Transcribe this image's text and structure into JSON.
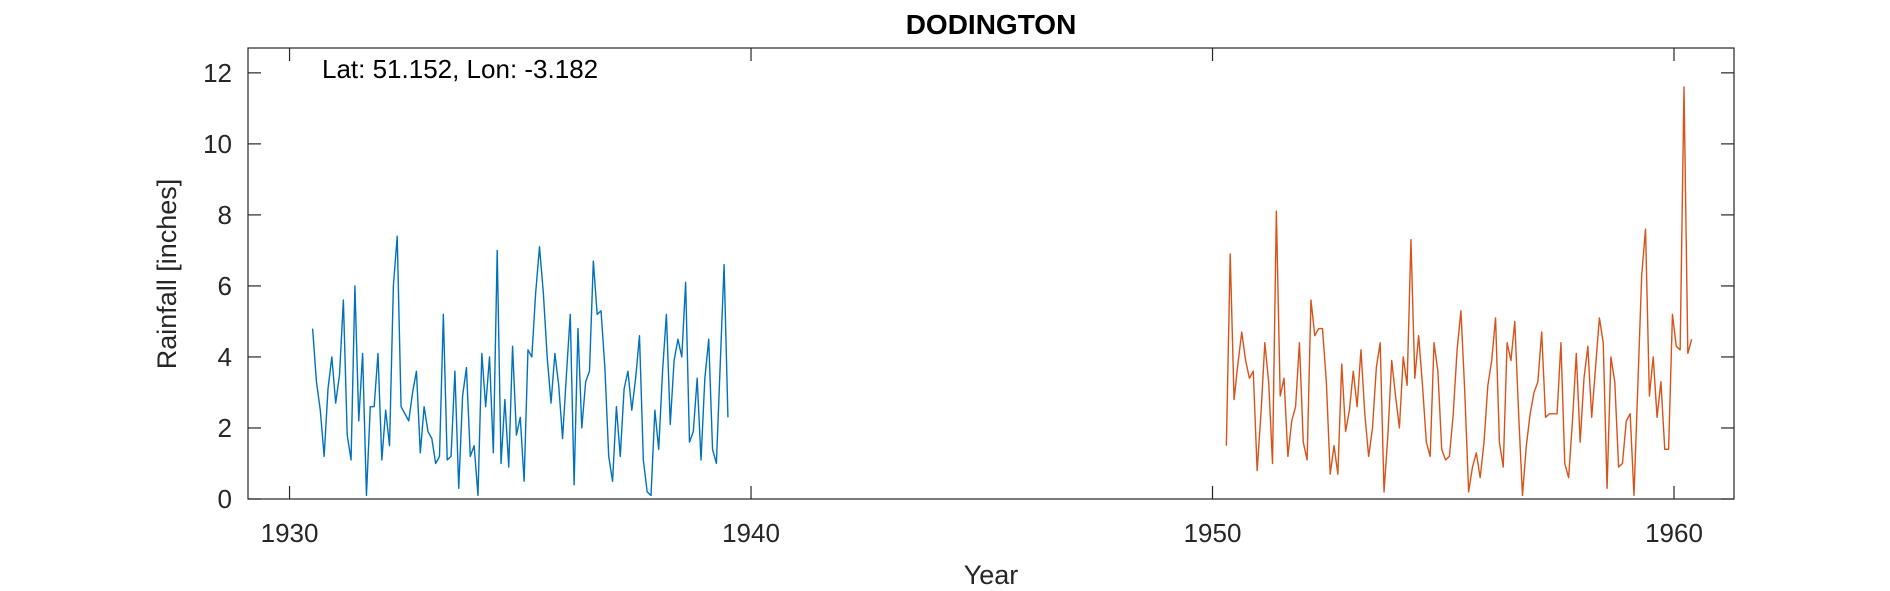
{
  "chart_data": {
    "type": "line",
    "title": "DODINGTON",
    "xlabel": "Year",
    "ylabel": "Rainfall [inches]",
    "annotation": "Lat: 51.152, Lon: -3.182",
    "xlim": [
      1929.1,
      1961.3
    ],
    "ylim": [
      0,
      12.7
    ],
    "xticks": [
      1930,
      1940,
      1950,
      1960
    ],
    "yticks": [
      0,
      2,
      4,
      6,
      8,
      10,
      12
    ],
    "grid": false,
    "colors": {
      "series1": "#0072BD",
      "series2": "#D95319",
      "axes": "#262626"
    },
    "series": [
      {
        "x_start": 1930.5,
        "x_step": 0.08333,
        "values": [
          4.8,
          3.3,
          2.5,
          1.2,
          3.1,
          4.0,
          2.7,
          3.5,
          5.6,
          1.8,
          1.1,
          6.0,
          2.2,
          4.1,
          0.1,
          2.6,
          2.6,
          4.1,
          1.1,
          2.5,
          1.5,
          6.0,
          7.4,
          2.6,
          2.4,
          2.2,
          3.0,
          3.6,
          1.3,
          2.6,
          1.9,
          1.7,
          1.0,
          1.2,
          5.2,
          1.1,
          1.2,
          3.6,
          0.3,
          2.9,
          3.7,
          1.2,
          1.5,
          0.1,
          4.1,
          2.6,
          4.0,
          1.3,
          7.0,
          1.0,
          2.8,
          0.9,
          4.3,
          1.8,
          2.3,
          0.5,
          4.2,
          4.0,
          5.8,
          7.1,
          5.8,
          4.0,
          2.7,
          4.1,
          3.2,
          1.7,
          3.5,
          5.2,
          0.4,
          4.8,
          2.0,
          3.3,
          3.6,
          6.7,
          5.2,
          5.3,
          3.7,
          1.2,
          0.5,
          2.6,
          1.2,
          3.1,
          3.6,
          2.5,
          3.4,
          4.6,
          1.1,
          0.2,
          0.1,
          2.5,
          1.4,
          3.6,
          5.2,
          2.1,
          3.9,
          4.5,
          4.0,
          6.1,
          1.6,
          1.9,
          3.4,
          1.1,
          3.4,
          4.5,
          1.4,
          1.0,
          3.8,
          6.6,
          2.3
        ]
      },
      {
        "x_start": 1950.3,
        "x_step": 0.08333,
        "values": [
          1.5,
          6.9,
          2.8,
          3.8,
          4.7,
          3.9,
          3.4,
          3.6,
          0.8,
          2.4,
          4.4,
          3.3,
          1.0,
          8.1,
          2.9,
          3.4,
          1.2,
          2.2,
          2.6,
          4.4,
          1.6,
          1.1,
          5.6,
          4.6,
          4.8,
          4.8,
          3.3,
          0.7,
          1.5,
          0.7,
          3.8,
          1.9,
          2.5,
          3.6,
          2.6,
          4.2,
          2.4,
          1.2,
          2.0,
          3.7,
          4.4,
          0.2,
          1.8,
          3.9,
          2.9,
          2.0,
          4.0,
          3.2,
          7.3,
          3.4,
          4.6,
          3.2,
          1.6,
          1.2,
          4.4,
          3.6,
          1.4,
          1.1,
          1.2,
          2.4,
          4.2,
          5.3,
          3.0,
          0.2,
          0.9,
          1.3,
          0.6,
          1.6,
          3.2,
          3.9,
          5.1,
          1.6,
          0.9,
          4.4,
          3.9,
          5.0,
          2.4,
          0.1,
          1.5,
          2.4,
          3.0,
          3.3,
          4.7,
          2.3,
          2.4,
          2.4,
          2.4,
          4.4,
          1.0,
          0.6,
          2.2,
          4.1,
          1.6,
          3.4,
          4.3,
          2.3,
          3.7,
          5.1,
          4.4,
          0.3,
          4.0,
          3.3,
          0.9,
          1.0,
          2.2,
          2.4,
          0.1,
          3.2,
          6.3,
          7.6,
          2.9,
          4.0,
          2.3,
          3.3,
          1.4,
          1.4,
          5.2,
          4.3,
          4.2,
          11.6,
          4.1,
          4.5
        ]
      }
    ]
  }
}
